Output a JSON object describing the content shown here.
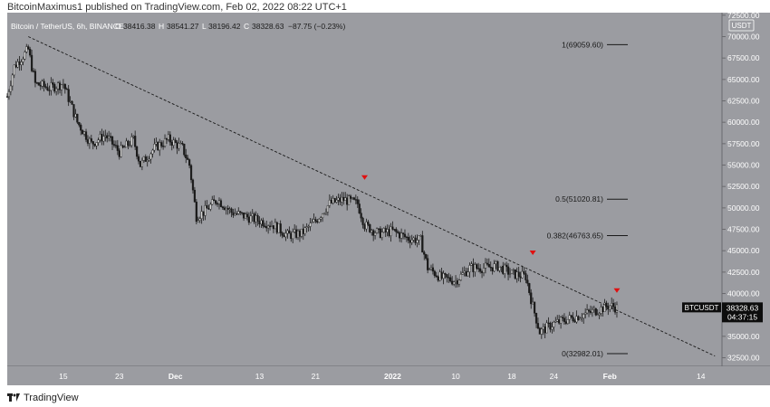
{
  "header": {
    "published_line": "BitcoinMaximus1 published on TradingView.com, Feb 02, 2022 08:22 UTC+1"
  },
  "footer": {
    "brand": "TradingView",
    "logo_icon": "tradingview-logo-icon"
  },
  "colors": {
    "background": "#9b9ca1",
    "candle": "#1a1a1a",
    "marker": "#e01010",
    "label_bg": "#0d0d0d"
  },
  "chart_data": {
    "type": "candlestick",
    "symbol_line": {
      "name": "Bitcoin / TetherUS, 6h, BINANCE",
      "o": "38416.38",
      "h": "38541.27",
      "l": "38196.42",
      "c": "38328.63",
      "change": "−87.75 (−0.23%)"
    },
    "price_axis": {
      "currency": "USDT",
      "ticks": [
        "72500.00",
        "70000.00",
        "67500.00",
        "65000.00",
        "62500.00",
        "60000.00",
        "57500.00",
        "55000.00",
        "52500.00",
        "50000.00",
        "47500.00",
        "45000.00",
        "42500.00",
        "40000.00",
        "37500.00",
        "35000.00",
        "32500.00"
      ],
      "ylim": [
        31500,
        72800
      ]
    },
    "time_axis": {
      "labels": [
        "15",
        "23",
        "Dec",
        "13",
        "21",
        "2022",
        "10",
        "18",
        "24",
        "Feb",
        "14"
      ],
      "bold_labels": [
        "Dec",
        "2022",
        "Feb"
      ],
      "date_range": [
        "2021-11-07",
        "2022-02-17"
      ]
    },
    "last_price": {
      "symbol": "BTCUSDT",
      "price": "38328.63",
      "countdown": "04:37:15",
      "value": 38328.63
    },
    "fib_levels": [
      {
        "label": "1(69059.60)",
        "value": 69059.6
      },
      {
        "label": "0.5(51020.81)",
        "value": 51020.81
      },
      {
        "label": "0.382(46763.65)",
        "value": 46763.65
      },
      {
        "label": "0(32982.01)",
        "value": 32982.01
      }
    ],
    "trendline": {
      "style": "dashed",
      "from": {
        "date": "2021-11-10",
        "price": 70000
      },
      "to": {
        "date": "2022-02-16",
        "price": 32700
      }
    },
    "markers": [
      {
        "date": "2021-12-28",
        "price": 53500,
        "shape": "down-arrow"
      },
      {
        "date": "2022-01-21",
        "price": 44700,
        "shape": "down-arrow"
      },
      {
        "date": "2022-02-02",
        "price": 40300,
        "shape": "down-arrow"
      }
    ],
    "price_path": [
      [
        "2021-11-07",
        63000
      ],
      [
        "2021-11-08",
        66500
      ],
      [
        "2021-11-10",
        68500
      ],
      [
        "2021-11-11",
        64500
      ],
      [
        "2021-11-13",
        64000
      ],
      [
        "2021-11-15",
        64500
      ],
      [
        "2021-11-17",
        60000
      ],
      [
        "2021-11-19",
        57500
      ],
      [
        "2021-11-21",
        58500
      ],
      [
        "2021-11-23",
        56500
      ],
      [
        "2021-11-25",
        58000
      ],
      [
        "2021-11-26",
        55000
      ],
      [
        "2021-11-28",
        57000
      ],
      [
        "2021-11-30",
        58000
      ],
      [
        "2021-12-02",
        57000
      ],
      [
        "2021-12-03",
        55000
      ],
      [
        "2021-12-04",
        49000
      ],
      [
        "2021-12-05",
        49500
      ],
      [
        "2021-12-07",
        51000
      ],
      [
        "2021-12-09",
        49500
      ],
      [
        "2021-12-11",
        49000
      ],
      [
        "2021-12-13",
        48500
      ],
      [
        "2021-12-15",
        48000
      ],
      [
        "2021-12-17",
        46800
      ],
      [
        "2021-12-19",
        47000
      ],
      [
        "2021-12-21",
        48500
      ],
      [
        "2021-12-23",
        50500
      ],
      [
        "2021-12-25",
        51000
      ],
      [
        "2021-12-27",
        50500
      ],
      [
        "2021-12-28",
        48000
      ],
      [
        "2021-12-30",
        47000
      ],
      [
        "2022-01-01",
        47300
      ],
      [
        "2022-01-03",
        46500
      ],
      [
        "2022-01-05",
        46200
      ],
      [
        "2022-01-06",
        43000
      ],
      [
        "2022-01-08",
        41800
      ],
      [
        "2022-01-10",
        41500
      ],
      [
        "2022-01-12",
        43000
      ],
      [
        "2022-01-14",
        43000
      ],
      [
        "2022-01-16",
        43200
      ],
      [
        "2022-01-18",
        42300
      ],
      [
        "2022-01-20",
        42000
      ],
      [
        "2022-01-21",
        38500
      ],
      [
        "2022-01-22",
        35500
      ],
      [
        "2022-01-24",
        36500
      ],
      [
        "2022-01-26",
        37000
      ],
      [
        "2022-01-28",
        37500
      ],
      [
        "2022-01-30",
        38000
      ],
      [
        "2022-02-01",
        38600
      ],
      [
        "2022-02-02",
        38328
      ]
    ]
  }
}
